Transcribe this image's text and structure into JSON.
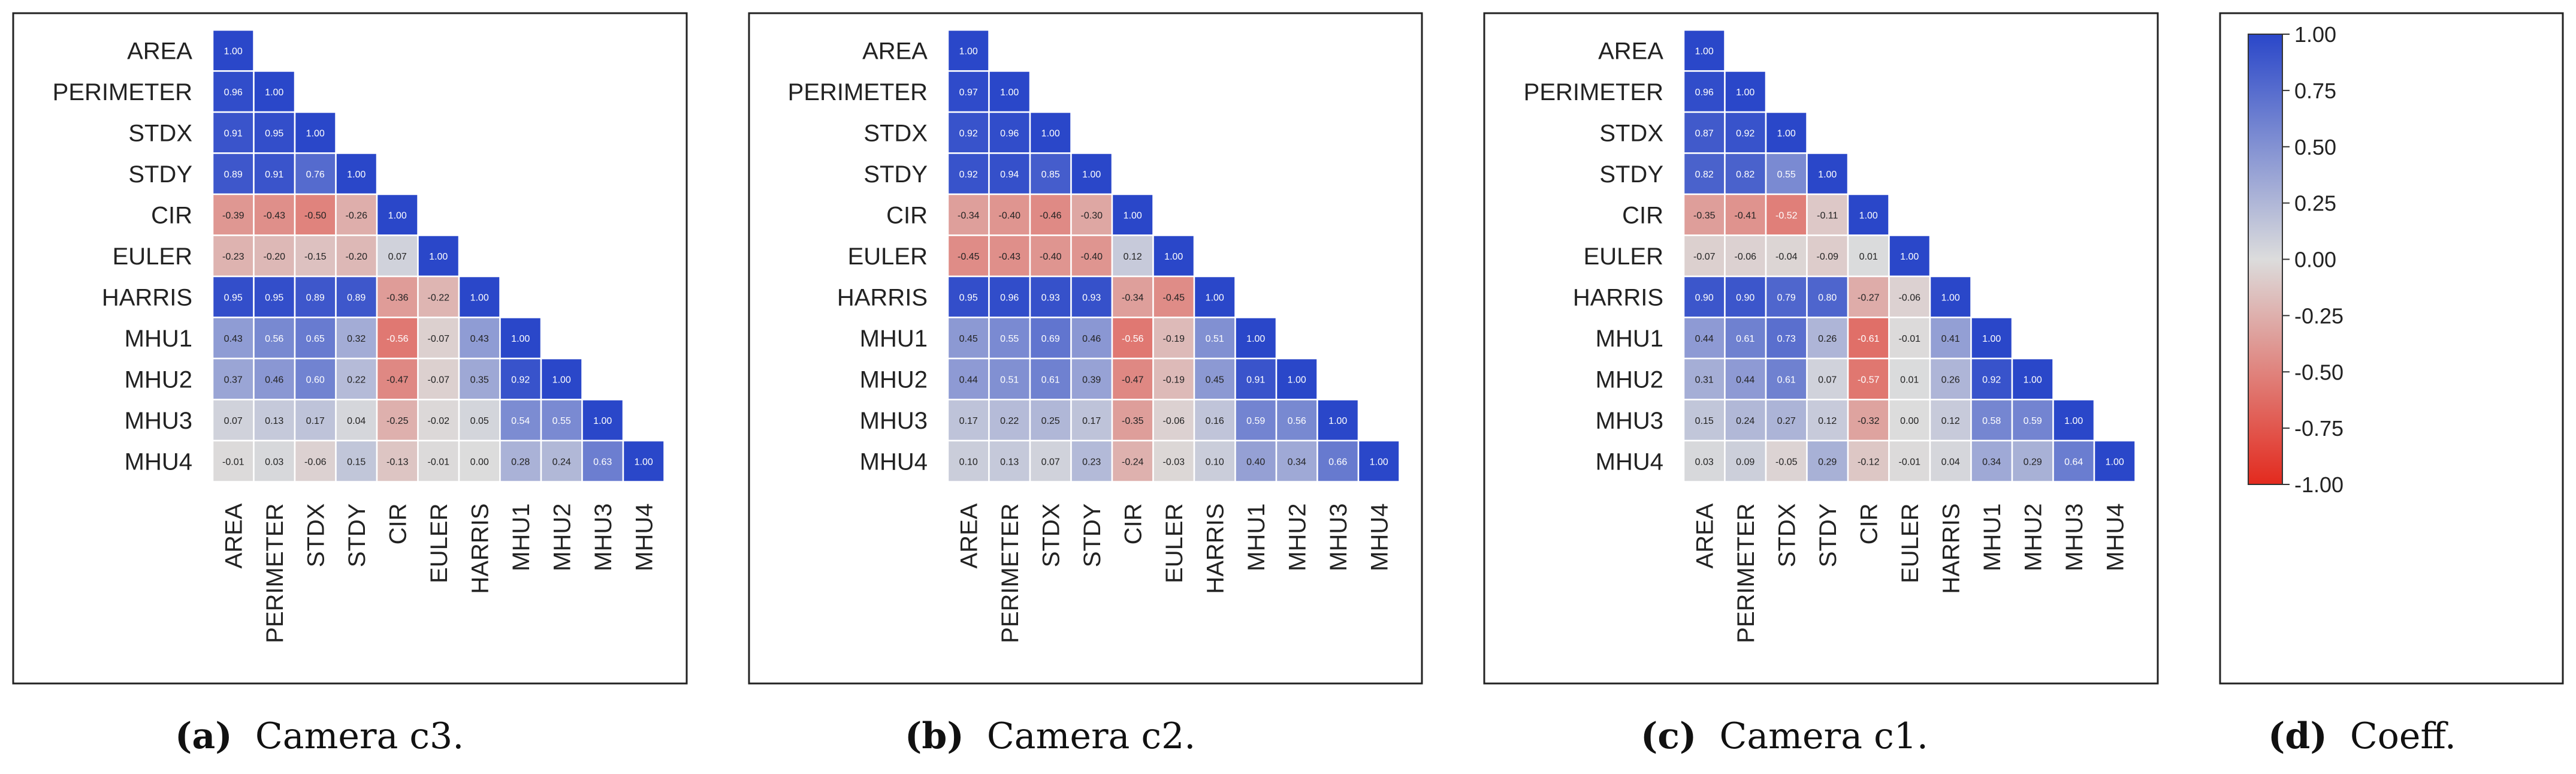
{
  "colors": {
    "neg": "#e32a1e",
    "mid": "#dcdcdc",
    "pos": "#2a47c9",
    "frame": "#222222",
    "grid": "#ffffff"
  },
  "chart_data": [
    {
      "type": "heatmap",
      "title": "",
      "caption_letter": "(a)",
      "caption_text": "Camera c3.",
      "labels": [
        "AREA",
        "PERIMETER",
        "STDX",
        "STDY",
        "CIR",
        "EULER",
        "HARRIS",
        "MHU1",
        "MHU2",
        "MHU3",
        "MHU4"
      ],
      "range": [
        -1,
        1
      ],
      "matrix": [
        [
          "1.00"
        ],
        [
          "0.96",
          "1.00"
        ],
        [
          "0.91",
          "0.95",
          "1.00"
        ],
        [
          "0.89",
          "0.91",
          "0.76",
          "1.00"
        ],
        [
          "-0.39",
          "-0.43",
          "-0.50",
          "-0.26",
          "1.00"
        ],
        [
          "-0.23",
          "-0.20",
          "-0.15",
          "-0.20",
          "0.07",
          "1.00"
        ],
        [
          "0.95",
          "0.95",
          "0.89",
          "0.89",
          "-0.36",
          "-0.22",
          "1.00"
        ],
        [
          "0.43",
          "0.56",
          "0.65",
          "0.32",
          "-0.56",
          "-0.07",
          "0.43",
          "1.00"
        ],
        [
          "0.37",
          "0.46",
          "0.60",
          "0.22",
          "-0.47",
          "-0.07",
          "0.35",
          "0.92",
          "1.00"
        ],
        [
          "0.07",
          "0.13",
          "0.17",
          "0.04",
          "-0.25",
          "-0.02",
          "0.05",
          "0.54",
          "0.55",
          "1.00"
        ],
        [
          "-0.01",
          "0.03",
          "-0.06",
          "0.15",
          "-0.13",
          "-0.01",
          "0.00",
          "0.28",
          "0.24",
          "0.63",
          "1.00"
        ]
      ]
    },
    {
      "type": "heatmap",
      "title": "",
      "caption_letter": "(b)",
      "caption_text": "Camera c2.",
      "labels": [
        "AREA",
        "PERIMETER",
        "STDX",
        "STDY",
        "CIR",
        "EULER",
        "HARRIS",
        "MHU1",
        "MHU2",
        "MHU3",
        "MHU4"
      ],
      "range": [
        -1,
        1
      ],
      "matrix": [
        [
          "1.00"
        ],
        [
          "0.97",
          "1.00"
        ],
        [
          "0.92",
          "0.96",
          "1.00"
        ],
        [
          "0.92",
          "0.94",
          "0.85",
          "1.00"
        ],
        [
          "-0.34",
          "-0.40",
          "-0.46",
          "-0.30",
          "1.00"
        ],
        [
          "-0.45",
          "-0.43",
          "-0.40",
          "-0.40",
          "0.12",
          "1.00"
        ],
        [
          "0.95",
          "0.96",
          "0.93",
          "0.93",
          "-0.34",
          "-0.45",
          "1.00"
        ],
        [
          "0.45",
          "0.55",
          "0.69",
          "0.46",
          "-0.56",
          "-0.19",
          "0.51",
          "1.00"
        ],
        [
          "0.44",
          "0.51",
          "0.61",
          "0.39",
          "-0.47",
          "-0.19",
          "0.45",
          "0.91",
          "1.00"
        ],
        [
          "0.17",
          "0.22",
          "0.25",
          "0.17",
          "-0.35",
          "-0.06",
          "0.16",
          "0.59",
          "0.56",
          "1.00"
        ],
        [
          "0.10",
          "0.13",
          "0.07",
          "0.23",
          "-0.24",
          "-0.03",
          "0.10",
          "0.40",
          "0.34",
          "0.66",
          "1.00"
        ]
      ]
    },
    {
      "type": "heatmap",
      "title": "",
      "caption_letter": "(c)",
      "caption_text": "Camera c1.",
      "labels": [
        "AREA",
        "PERIMETER",
        "STDX",
        "STDY",
        "CIR",
        "EULER",
        "HARRIS",
        "MHU1",
        "MHU2",
        "MHU3",
        "MHU4"
      ],
      "range": [
        -1,
        1
      ],
      "matrix": [
        [
          "1.00"
        ],
        [
          "0.96",
          "1.00"
        ],
        [
          "0.87",
          "0.92",
          "1.00"
        ],
        [
          "0.82",
          "0.82",
          "0.55",
          "1.00"
        ],
        [
          "-0.35",
          "-0.41",
          "-0.52",
          "-0.11",
          "1.00"
        ],
        [
          "-0.07",
          "-0.06",
          "-0.04",
          "-0.09",
          "0.01",
          "1.00"
        ],
        [
          "0.90",
          "0.90",
          "0.79",
          "0.80",
          "-0.27",
          "-0.06",
          "1.00"
        ],
        [
          "0.44",
          "0.61",
          "0.73",
          "0.26",
          "-0.61",
          "-0.01",
          "0.41",
          "1.00"
        ],
        [
          "0.31",
          "0.44",
          "0.61",
          "0.07",
          "-0.57",
          "0.01",
          "0.26",
          "0.92",
          "1.00"
        ],
        [
          "0.15",
          "0.24",
          "0.27",
          "0.12",
          "-0.32",
          "0.00",
          "0.12",
          "0.58",
          "0.59",
          "1.00"
        ],
        [
          "0.03",
          "0.09",
          "-0.05",
          "0.29",
          "-0.12",
          "-0.01",
          "0.04",
          "0.34",
          "0.29",
          "0.64",
          "1.00"
        ]
      ]
    }
  ],
  "colorbar": {
    "ticks": [
      "1.00",
      "0.75",
      "0.50",
      "0.25",
      "0.00",
      "-0.25",
      "-0.50",
      "-0.75",
      "-1.00"
    ],
    "caption_letter": "(d)",
    "caption_text": "Coeff."
  }
}
